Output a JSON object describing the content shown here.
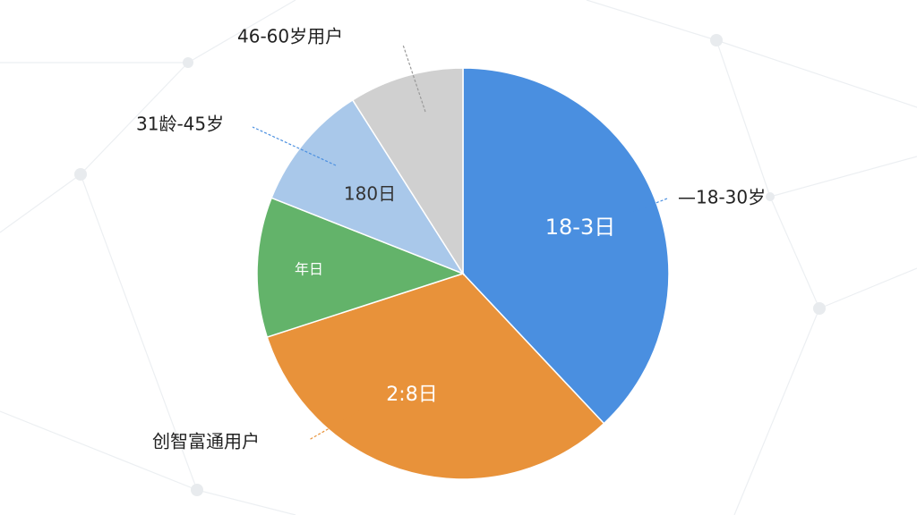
{
  "chart_data": {
    "type": "pie",
    "categories": [
      "—18-30岁",
      "创智富通用户",
      null,
      "31龄-45岁",
      "46-60岁用户"
    ],
    "values": [
      38,
      32,
      11,
      10,
      9
    ],
    "slice_labels": [
      "18-3日",
      "2:8日",
      "年日",
      "180日",
      null
    ],
    "colors": [
      "#4a8fe0",
      "#e8923a",
      "#63b36a",
      "#a9c8ea",
      "#d0d0d0"
    ]
  }
}
